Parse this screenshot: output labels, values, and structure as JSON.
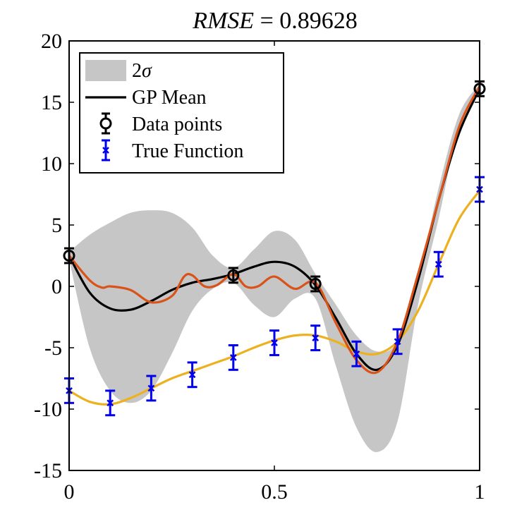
{
  "chart_data": {
    "type": "line",
    "title": "RMSE = 0.89628",
    "title_parts": [
      "RMSE",
      " = 0.89628"
    ],
    "xlabel": "",
    "ylabel": "",
    "xlim": [
      0,
      1
    ],
    "ylim": [
      -15,
      20
    ],
    "x_ticks": [
      0,
      0.5,
      1
    ],
    "x_tick_labels": [
      "0",
      "0.5",
      "1"
    ],
    "y_ticks": [
      20,
      15,
      10,
      5,
      0,
      -5,
      -10,
      -15
    ],
    "y_tick_labels": [
      "20",
      "15",
      "10",
      "5",
      "0",
      "-5",
      "-10",
      "-15"
    ],
    "grid": false,
    "legend_position": "top-left",
    "legend": [
      {
        "label": "2σ",
        "label_parts": [
          "2",
          "σ"
        ],
        "kind": "band",
        "color": "#c6c6c6"
      },
      {
        "label": "GP Mean",
        "kind": "line",
        "color": "#000000"
      },
      {
        "label": "Data points",
        "kind": "errorbar-circle",
        "color": "#000000"
      },
      {
        "label": "True Function",
        "kind": "errorbar-x",
        "color": "#0000ee"
      }
    ],
    "band": {
      "name": "2σ",
      "color": "#c6c6c6",
      "x": [
        0,
        0.05,
        0.1,
        0.15,
        0.2,
        0.25,
        0.3,
        0.35,
        0.4,
        0.45,
        0.5,
        0.55,
        0.6,
        0.65,
        0.7,
        0.75,
        0.8,
        0.85,
        0.9,
        0.95,
        1.0
      ],
      "upper": [
        2.8,
        4.2,
        5.2,
        6.0,
        6.2,
        6.0,
        4.8,
        2.5,
        1.5,
        3.0,
        4.5,
        3.8,
        1.0,
        -1.5,
        -4.0,
        -5.3,
        -4.5,
        0.5,
        8.0,
        14.0,
        16.5
      ],
      "lower": [
        2.2,
        -5.0,
        -8.5,
        -9.5,
        -8.5,
        -5.5,
        -2.0,
        -0.2,
        0.3,
        -1.5,
        -2.5,
        -1.0,
        -1.0,
        -6.5,
        -11.5,
        -13.5,
        -11.0,
        -1.5,
        5.5,
        13.0,
        15.8
      ]
    },
    "series": [
      {
        "name": "GP Mean",
        "color": "#000000",
        "x": [
          0,
          0.05,
          0.1,
          0.15,
          0.2,
          0.25,
          0.3,
          0.35,
          0.4,
          0.45,
          0.5,
          0.55,
          0.6,
          0.65,
          0.7,
          0.75,
          0.8,
          0.85,
          0.9,
          0.95,
          1.0
        ],
        "y": [
          2.5,
          -0.5,
          -1.8,
          -1.9,
          -1.2,
          -0.3,
          0.3,
          0.6,
          1.0,
          1.6,
          2.0,
          1.6,
          0.1,
          -2.6,
          -5.5,
          -6.8,
          -4.8,
          0.5,
          7.0,
          12.5,
          16.1
        ]
      },
      {
        "color": "#d95319",
        "x": [
          0,
          0.05,
          0.08,
          0.1,
          0.15,
          0.2,
          0.25,
          0.28,
          0.3,
          0.33,
          0.36,
          0.4,
          0.43,
          0.46,
          0.5,
          0.55,
          0.6,
          0.65,
          0.7,
          0.75,
          0.8,
          0.85,
          0.9,
          0.95,
          1.0
        ],
        "y": [
          2.5,
          0.5,
          -0.1,
          0.0,
          -0.3,
          -1.3,
          -0.8,
          0.8,
          0.9,
          0.0,
          0.1,
          1.0,
          0.0,
          0.0,
          0.8,
          -0.2,
          0.3,
          -3.0,
          -6.0,
          -7.0,
          -4.5,
          1.0,
          7.0,
          13.0,
          16.3
        ]
      },
      {
        "color": "#edb120",
        "x": [
          0,
          0.05,
          0.1,
          0.15,
          0.2,
          0.25,
          0.3,
          0.35,
          0.4,
          0.45,
          0.5,
          0.55,
          0.6,
          0.65,
          0.7,
          0.75,
          0.8,
          0.85,
          0.9,
          0.95,
          1.0
        ],
        "y": [
          -8.5,
          -9.4,
          -9.6,
          -9.1,
          -8.3,
          -7.5,
          -6.9,
          -6.3,
          -5.7,
          -5.0,
          -4.4,
          -4.0,
          -4.0,
          -4.5,
          -5.3,
          -5.5,
          -4.5,
          -2.0,
          1.8,
          5.5,
          7.8
        ]
      }
    ],
    "data_points": {
      "name": "Data points",
      "color": "#000000",
      "x": [
        0,
        0.4,
        0.6,
        1.0
      ],
      "y": [
        2.5,
        0.9,
        0.2,
        16.1
      ],
      "err": [
        0.6,
        0.6,
        0.6,
        0.6
      ]
    },
    "true_function_points": {
      "name": "True Function",
      "color": "#0000ee",
      "x": [
        0,
        0.1,
        0.2,
        0.3,
        0.4,
        0.5,
        0.6,
        0.7,
        0.8,
        0.9,
        1.0
      ],
      "y": [
        -8.5,
        -9.5,
        -8.3,
        -7.2,
        -5.8,
        -4.6,
        -4.2,
        -5.5,
        -4.5,
        1.8,
        7.9
      ],
      "err": [
        1.0,
        1.0,
        1.0,
        1.0,
        1.0,
        1.0,
        1.0,
        1.0,
        1.0,
        1.0,
        1.0
      ]
    }
  }
}
